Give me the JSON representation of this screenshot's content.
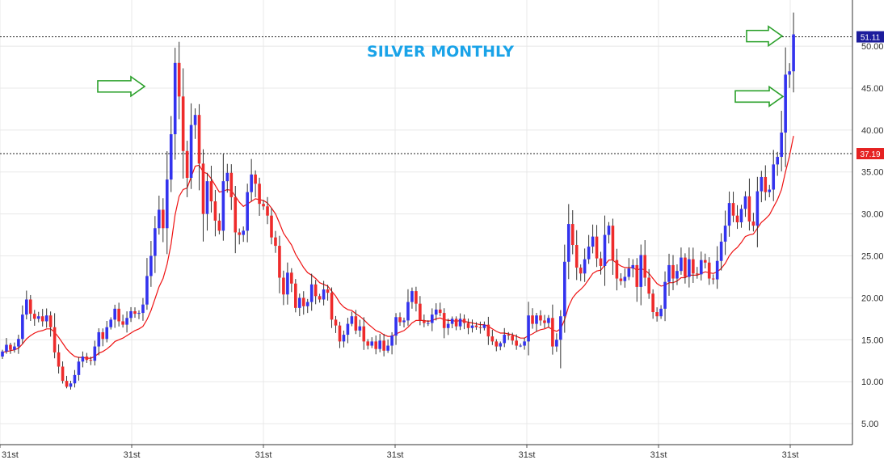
{
  "chart_data": {
    "type": "candlestick",
    "title": "SILVER MONTHLY",
    "xlabel": "",
    "ylabel": "",
    "ylim": [
      2.5,
      55.5
    ],
    "y_ticks": [
      5,
      10,
      15,
      20,
      25,
      30,
      35,
      40,
      45,
      50
    ],
    "y_tick_labels": [
      "5.00",
      "10.00",
      "15.00",
      "20.00",
      "25.00",
      "30.00",
      "35.00",
      "40.00",
      "45.00",
      "50.00"
    ],
    "x_tick_labels": [
      "31st",
      "31st",
      "31st",
      "31st",
      "31st",
      "31st",
      "31st"
    ],
    "grid": true,
    "colors": {
      "up": "#3333ee",
      "down": "#ee2b2b",
      "ma": "#ee1111",
      "wick": "#333333",
      "arrow": "#2aa02a",
      "grid": "#e8e8e8",
      "title": "#1aa3e8"
    },
    "price_levels": [
      {
        "value": 51.11,
        "label": "51.11",
        "color": "#1c1c9c"
      },
      {
        "value": 37.19,
        "label": "37.19",
        "color": "#e52222"
      }
    ],
    "arrows": [
      {
        "target_y": 45.2,
        "direction": "right"
      },
      {
        "target_y": 44.0,
        "direction": "right"
      },
      {
        "target_y": 51.2,
        "direction": "right"
      }
    ],
    "series": [
      {
        "type": "candlestick",
        "closes": [
          13.6,
          14.4,
          13.8,
          14.2,
          15.1,
          18.0,
          19.8,
          18.1,
          17.5,
          17.8,
          17.2,
          17.9,
          16.5,
          13.5,
          11.8,
          10.1,
          9.4,
          9.8,
          10.8,
          12.4,
          13.0,
          12.6,
          12.5,
          14.2,
          15.9,
          15.1,
          16.5,
          17.4,
          18.7,
          17.2,
          16.8,
          17.6,
          18.4,
          18.1,
          18.2,
          19.2,
          22.6,
          25.0,
          28.3,
          30.5,
          28.3,
          34.1,
          39.5,
          48.0,
          44.0,
          37.5,
          34.3,
          40.6,
          41.8,
          36.0,
          30.0,
          33.9,
          31.5,
          29.2,
          28.0,
          33.9,
          34.9,
          32.0,
          27.8,
          27.5,
          28.0,
          32.6,
          34.7,
          33.6,
          31.2,
          30.9,
          29.8,
          27.2,
          26.2,
          22.4,
          20.4,
          23.0,
          21.7,
          18.8,
          20.0,
          19.0,
          19.5,
          21.6,
          20.2,
          19.8,
          21.0,
          20.6,
          17.4,
          16.7,
          14.8,
          15.6,
          16.9,
          17.8,
          16.1,
          16.6,
          14.8,
          14.3,
          14.8,
          13.9,
          14.9,
          13.7,
          14.3,
          15.5,
          17.7,
          17.1,
          17.3,
          19.5,
          20.8,
          19.3,
          17.3,
          17.0,
          17.0,
          18.0,
          18.6,
          18.2,
          16.4,
          16.9,
          17.5,
          16.6,
          17.5,
          17.0,
          16.4,
          16.7,
          16.5,
          16.4,
          16.8,
          15.4,
          14.8,
          14.2,
          14.6,
          15.6,
          15.5,
          14.9,
          14.3,
          14.3,
          14.8,
          17.9,
          16.9,
          17.9,
          17.3,
          17.0,
          17.6,
          14.2,
          15.0,
          17.8,
          24.3,
          28.8,
          26.3,
          23.6,
          22.9,
          24.6,
          26.1,
          27.3,
          24.7,
          23.8,
          27.5,
          28.6,
          24.5,
          22.3,
          22.0,
          22.5,
          23.5,
          23.9,
          21.3,
          25.1,
          22.4,
          20.5,
          18.3,
          17.8,
          18.7,
          21.9,
          23.9,
          22.3,
          23.2,
          24.8,
          22.5,
          24.6,
          22.9,
          22.8,
          24.5,
          24.2,
          22.3,
          22.2,
          24.4,
          26.7,
          28.6,
          31.3,
          29.8,
          29.0,
          30.6,
          32.1,
          29.1,
          28.6,
          32.7,
          34.4,
          32.6,
          32.9,
          35.9,
          36.8,
          39.7,
          46.6,
          47.0,
          51.4
        ]
      },
      {
        "type": "line",
        "name": "",
        "values": [
          13.5,
          13.6,
          13.7,
          13.8,
          14.0,
          14.5,
          15.1,
          15.5,
          15.8,
          16.0,
          16.1,
          16.3,
          16.3,
          15.9,
          15.3,
          14.6,
          13.9,
          13.4,
          13.0,
          12.9,
          12.9,
          12.8,
          12.8,
          13.0,
          13.4,
          13.6,
          13.9,
          14.3,
          14.8,
          15.0,
          15.2,
          15.5,
          15.8,
          16.1,
          16.3,
          16.6,
          17.4,
          18.5,
          19.9,
          21.3,
          22.3,
          24.0,
          26.4,
          29.9,
          32.1,
          32.9,
          33.1,
          34.4,
          35.7,
          35.8,
          35.0,
          34.8,
          34.2,
          33.4,
          32.6,
          32.7,
          32.9,
          32.8,
          32.1,
          31.4,
          30.9,
          31.2,
          31.5,
          31.8,
          31.7,
          31.6,
          31.3,
          30.7,
          30.0,
          28.9,
          27.7,
          27.0,
          26.3,
          25.2,
          24.4,
          23.6,
          23.0,
          22.7,
          22.3,
          21.8,
          21.6,
          21.4,
          20.8,
          20.2,
          19.4,
          18.9,
          18.6,
          18.5,
          18.1,
          17.8,
          17.4,
          16.9,
          16.5,
          16.1,
          15.9,
          15.6,
          15.4,
          15.4,
          15.7,
          15.9,
          16.1,
          16.5,
          17.0,
          17.3,
          17.3,
          17.3,
          17.2,
          17.3,
          17.5,
          17.6,
          17.4,
          17.3,
          17.3,
          17.2,
          17.3,
          17.2,
          17.1,
          17.0,
          16.9,
          16.8,
          16.8,
          16.6,
          16.3,
          16.0,
          15.8,
          15.8,
          15.7,
          15.6,
          15.4,
          15.2,
          15.2,
          15.5,
          15.7,
          16.0,
          16.2,
          16.3,
          16.5,
          16.2,
          16.0,
          16.3,
          17.4,
          19.0,
          20.0,
          20.6,
          21.0,
          21.5,
          22.2,
          22.9,
          23.2,
          23.3,
          23.9,
          24.5,
          24.5,
          24.1,
          23.8,
          23.6,
          23.6,
          23.6,
          23.3,
          23.5,
          23.3,
          22.9,
          22.3,
          21.7,
          21.4,
          21.5,
          21.8,
          21.8,
          22.0,
          22.4,
          22.4,
          22.7,
          22.7,
          22.7,
          22.9,
          23.1,
          23.0,
          22.9,
          23.1,
          23.5,
          24.1,
          25.0,
          25.6,
          26.0,
          26.6,
          27.3,
          27.5,
          27.6,
          28.3,
          29.0,
          29.4,
          29.9,
          30.8,
          31.7,
          32.9,
          35.0,
          36.9,
          39.3
        ]
      }
    ]
  }
}
